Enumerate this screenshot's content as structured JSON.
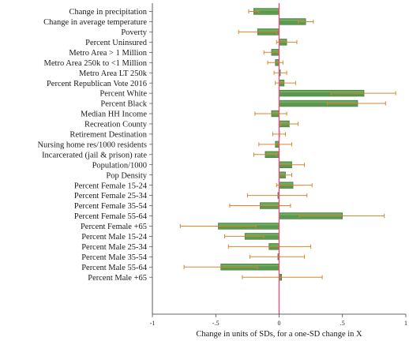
{
  "chart_data": {
    "type": "bar",
    "orientation": "horizontal",
    "xlabel": "Change in units of SDs, for a one-SD change in X",
    "xlim": [
      -1,
      1
    ],
    "xticks": [
      -1,
      -0.5,
      0,
      0.5,
      1
    ],
    "xtick_labels": [
      "-1",
      "-.5",
      "0",
      ".5",
      "1"
    ],
    "reference_line": 0,
    "error_bars": true,
    "categories": [
      "Change in precipitation",
      "Change in average temperature",
      "Poverty",
      "Percent Uninsured",
      "Metro Area > 1 Million",
      "Metro Area 250k to <1 Million",
      "Metro Area LT 250k",
      "Percent Republican Vote 2016",
      "Percent White",
      "Percent Black",
      "Median HH Income",
      "Recreation County",
      "Retirement Destination",
      "Nursing home res/1000 residents",
      "Incarcerated (jail & prison) rate",
      "Population/1000",
      "Pop Density",
      "Percent Female 15-24",
      "Percent Female 25-34",
      "Percent Female 35-54",
      "Percent Female 55-64",
      "Percent Female +65",
      "Percent Male 15-24",
      "Percent Male 25-34",
      "Percent Male 35-54",
      "Percent Male 55-64",
      "Percent Male +65"
    ],
    "values": [
      -0.2,
      0.21,
      -0.17,
      0.06,
      -0.06,
      -0.03,
      0.01,
      0.04,
      0.67,
      0.62,
      -0.06,
      0.08,
      0.0,
      -0.03,
      -0.11,
      0.1,
      0.05,
      0.11,
      -0.01,
      -0.15,
      0.5,
      -0.48,
      -0.27,
      -0.08,
      -0.01,
      -0.46,
      0.02
    ],
    "ci_low": [
      -0.24,
      0.15,
      -0.32,
      -0.02,
      -0.12,
      -0.09,
      -0.04,
      -0.03,
      0.41,
      0.38,
      -0.19,
      0.01,
      -0.05,
      -0.16,
      -0.2,
      0.0,
      0.0,
      -0.02,
      -0.25,
      -0.39,
      0.16,
      -0.78,
      -0.43,
      -0.4,
      -0.23,
      -0.75,
      -0.29
    ],
    "ci_high": [
      -0.16,
      0.27,
      -0.02,
      0.14,
      0.0,
      0.03,
      0.06,
      0.13,
      0.92,
      0.84,
      0.06,
      0.15,
      0.05,
      0.1,
      -0.02,
      0.2,
      0.1,
      0.26,
      0.22,
      0.09,
      0.83,
      -0.18,
      -0.12,
      0.25,
      0.2,
      -0.17,
      0.34
    ],
    "colors": {
      "bar_fill": "#5b9a4e",
      "bar_edge": "#3f7a3a",
      "bar_highlight": "#7fb46a",
      "error_bar": "#d7862f",
      "zero_line": "#e8507a",
      "axis": "#333333"
    }
  }
}
